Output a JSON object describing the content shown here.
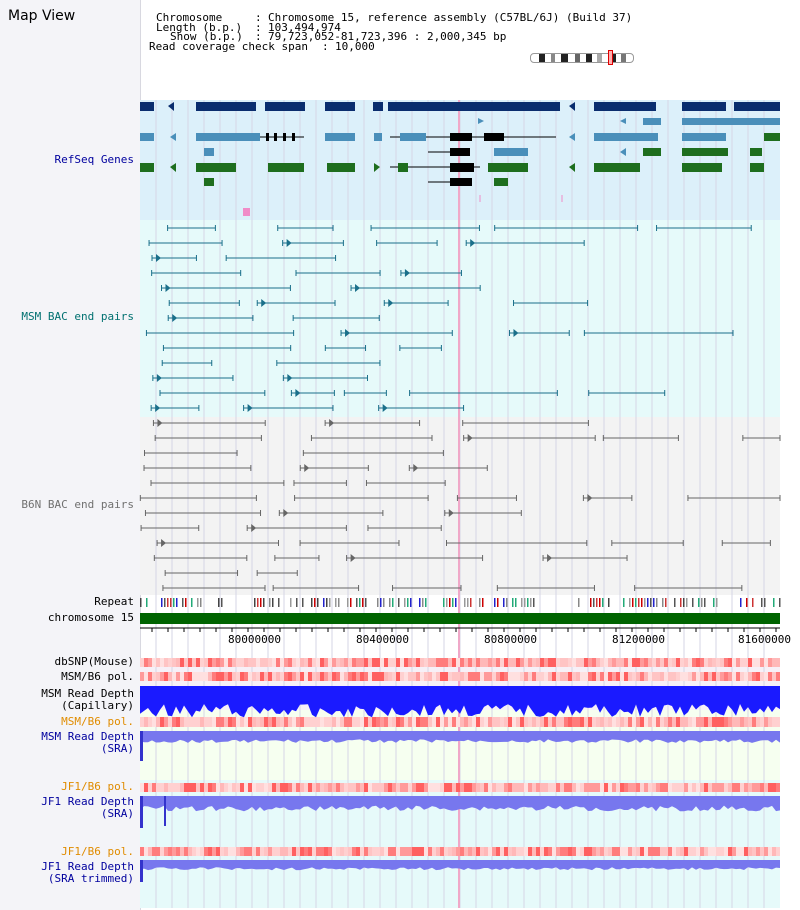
{
  "map_view_title": "Map View",
  "header": {
    "chromosome_label": "Chromosome",
    "chromosome_value": "Chromosome 15, reference assembly (C57BL/6J) (Build 37)",
    "length_label": "Length (b.p.)",
    "length_value": "103,494,974",
    "show_label": "Show (b.p.)",
    "show_value": "79,723,052-81,723,396 : 2,000,345 bp",
    "span_label": "Read coverage check span",
    "span_value": "10,000"
  },
  "tracks": {
    "refseq": "RefSeq Genes",
    "msm_bac": "MSM BAC end pairs",
    "b6n_bac": "B6N BAC end pairs",
    "repeat": "Repeat",
    "chromosome": "chromosome 15",
    "dbsnp": "dbSNP(Mouse)",
    "msm_b6_pol_1": "MSM/B6 pol.",
    "msm_depth_cap_1": "MSM Read Depth",
    "msm_depth_cap_2": "(Capillary)",
    "msm_b6_pol_2": "MSM/B6 pol.",
    "msm_depth_sra_1": "MSM Read Depth",
    "msm_depth_sra_2": "(SRA)",
    "jf1_b6_pol_1": "JF1/B6 pol.",
    "jf1_depth_sra_1": "JF1 Read Depth",
    "jf1_depth_sra_2": "(SRA)",
    "jf1_b6_pol_2": "JF1/B6 pol.",
    "jf1_depth_trim_1": "JF1 Read Depth",
    "jf1_depth_trim_2": "(SRA trimmed)"
  },
  "axis_ticks": [
    "80000000",
    "80400000",
    "80800000",
    "81200000",
    "81600000"
  ],
  "colors": {
    "refseq_bg": "#dcf0fa",
    "bac_bg": "#e6fafa",
    "navy": "#0a2d6e",
    "steel": "#4a8fba",
    "green": "#1e6e1e",
    "msm_label": "#007070",
    "b6n_label": "#707070",
    "blue_label": "#00009e",
    "orange_label": "#e08c00",
    "depth_blue": "#1a1aff",
    "depth_light": "#7777ee"
  }
}
